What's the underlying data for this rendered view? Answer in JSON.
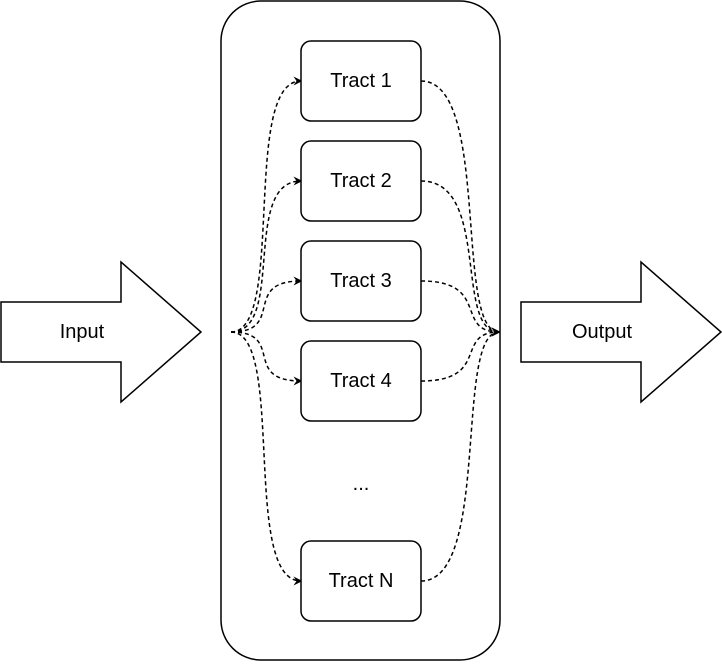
{
  "input_label": "Input",
  "output_label": "Output",
  "tracts": [
    "Tract 1",
    "Tract 2",
    "Tract 3",
    "Tract 4",
    "Tract N"
  ],
  "ellipsis": "..."
}
